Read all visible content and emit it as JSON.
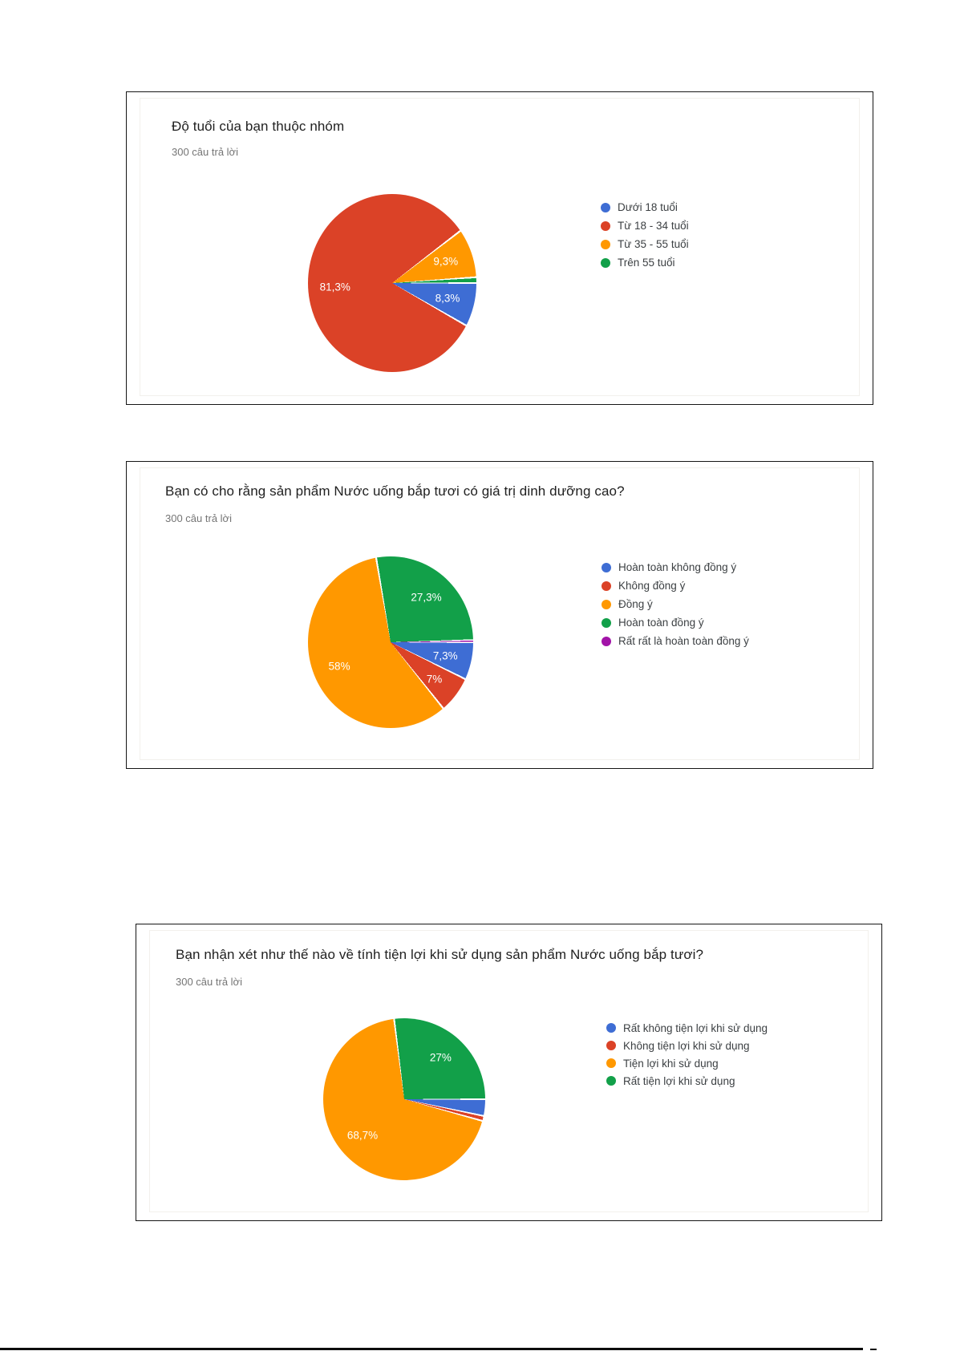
{
  "chart_data": [
    {
      "type": "pie",
      "title": "Độ tuổi của bạn thuộc nhóm",
      "subtitle": "300 câu trả lời",
      "legend_position": "right",
      "slices": [
        {
          "label": "Dưới 18 tuổi",
          "value": 8.3,
          "display": "8,3%",
          "color": "#3e6dd4"
        },
        {
          "label": "Từ 18 - 34 tuổi",
          "value": 81.3,
          "display": "81,3%",
          "color": "#db4227"
        },
        {
          "label": "Từ 35 - 55 tuổi",
          "value": 9.3,
          "display": "9,3%",
          "color": "#ff9800"
        },
        {
          "label": "Trên 55 tuổi",
          "value": 1.1,
          "display": null,
          "color": "#12a049"
        }
      ]
    },
    {
      "type": "pie",
      "title": "Bạn có cho rằng sản phẩm Nước uống bắp tươi có giá trị dinh dưỡng cao?",
      "subtitle": "300 câu trả lời",
      "legend_position": "right",
      "slices": [
        {
          "label": "Hoàn toàn không đồng ý",
          "value": 7.3,
          "display": "7,3%",
          "color": "#3e6dd4"
        },
        {
          "label": "Không đồng ý",
          "value": 7.0,
          "display": "7%",
          "color": "#db4227"
        },
        {
          "label": "Đồng ý",
          "value": 58.0,
          "display": "58%",
          "color": "#ff9800"
        },
        {
          "label": "Hoàn toàn đồng ý",
          "value": 27.3,
          "display": "27,3%",
          "color": "#12a049"
        },
        {
          "label": "Rất rất là hoàn toàn đồng ý",
          "value": 0.4,
          "display": null,
          "color": "#a213a8"
        }
      ]
    },
    {
      "type": "pie",
      "title": "Bạn nhận xét như thế nào về tính tiện lợi khi sử dụng sản phẩm Nước uống bắp tươi?",
      "subtitle": "300 câu trả lời",
      "legend_position": "right",
      "slices": [
        {
          "label": "Rất không tiện lợi khi sử dụng",
          "value": 3.3,
          "display": null,
          "color": "#3e6dd4"
        },
        {
          "label": "Không tiện lợi khi sử dụng",
          "value": 1.0,
          "display": null,
          "color": "#db4227"
        },
        {
          "label": "Tiện lợi khi sử dụng",
          "value": 68.7,
          "display": "68,7%",
          "color": "#ff9800"
        },
        {
          "label": "Rất tiện lợi khi sử dụng",
          "value": 27.0,
          "display": "27%",
          "color": "#12a049"
        }
      ]
    }
  ]
}
